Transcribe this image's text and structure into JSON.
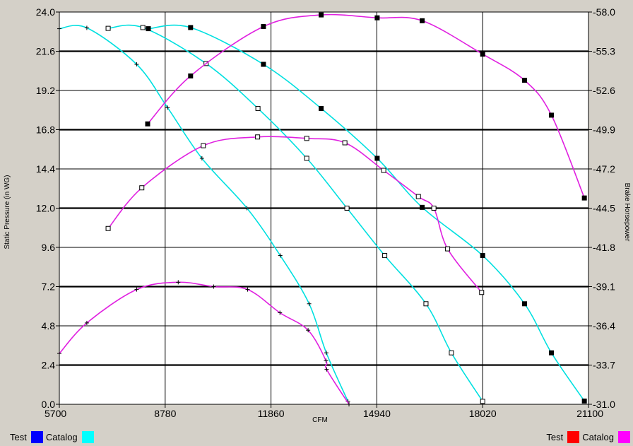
{
  "chart_data": {
    "type": "line",
    "xlabel": "CFM",
    "ylabel_left": "Static Pressure  (in WG)",
    "ylabel_right": "Brake Horsepower",
    "xlim": [
      5700,
      21100
    ],
    "ylim_left": [
      0,
      24
    ],
    "ylim_right": [
      -31.0,
      -58.0
    ],
    "x_ticks": [
      "5700",
      "8780",
      "11860",
      "14940",
      "18020",
      "21100"
    ],
    "y_left_ticks": [
      "0.0",
      "2.4",
      "4.8",
      "7.2",
      "9.6",
      "12.0",
      "14.4",
      "16.8",
      "19.2",
      "21.6",
      "24.0"
    ],
    "y_right_ticks": [
      "-31.0",
      "-33.7",
      "-36.4",
      "-39.1",
      "-41.8",
      "-44.5",
      "-47.2",
      "-49.9",
      "-52.6",
      "-55.3",
      "-58.0"
    ],
    "grid": true,
    "legend_left": [
      {
        "label": "Test",
        "color": "#0000ff"
      },
      {
        "label": "Catalog",
        "color": "#00ffff"
      }
    ],
    "legend_right": [
      {
        "label": "Test",
        "color": "#ff0000"
      },
      {
        "label": "Catalog",
        "color": "#ff00ff"
      }
    ],
    "series": [
      {
        "axis": "left",
        "color": "#00e0e0",
        "marker": "plus",
        "x": [
          5700,
          6500,
          7950,
          8850,
          9850,
          11160,
          12130,
          12970,
          13470,
          14100
        ],
        "y": [
          22.98,
          23.03,
          20.8,
          18.15,
          15.05,
          12.0,
          9.1,
          6.15,
          3.15,
          0.18
        ]
      },
      {
        "axis": "left",
        "color": "#00e0e0",
        "marker": "square",
        "x": [
          7120,
          8130,
          9970,
          11480,
          12900,
          14070,
          15170,
          16370,
          17110,
          18020
        ],
        "y": [
          23.0,
          23.05,
          20.85,
          18.1,
          15.05,
          12.0,
          9.1,
          6.15,
          3.15,
          0.18
        ]
      },
      {
        "axis": "left",
        "color": "#00e0e0",
        "marker": "filled",
        "x": [
          8290,
          9520,
          11640,
          13320,
          14950,
          16260,
          18020,
          19240,
          20020,
          20980
        ],
        "y": [
          22.98,
          23.05,
          20.8,
          18.1,
          15.05,
          12.05,
          9.1,
          6.15,
          3.15,
          0.2
        ]
      },
      {
        "axis": "right",
        "color": "#e020e0",
        "marker": "plus",
        "x": [
          5700,
          6500,
          7950,
          9160,
          10190,
          11180,
          12120,
          12940,
          13460,
          13480,
          14130
        ],
        "y": [
          -34.5,
          -36.6,
          -38.9,
          -39.4,
          -39.1,
          -38.9,
          -37.3,
          -36.1,
          -34.0,
          -33.4,
          -31.0
        ]
      },
      {
        "axis": "right",
        "color": "#e020e0",
        "marker": "square",
        "x": [
          7120,
          8100,
          9890,
          11470,
          12900,
          14010,
          15140,
          16150,
          16600,
          17000,
          17990
        ],
        "y": [
          -43.1,
          -45.9,
          -48.8,
          -49.4,
          -49.3,
          -49.0,
          -47.1,
          -45.3,
          -44.5,
          -41.7,
          -38.7
        ]
      },
      {
        "axis": "right",
        "color": "#e020e0",
        "marker": "filled",
        "x": [
          8270,
          9520,
          11640,
          13320,
          14950,
          16260,
          18020,
          19240,
          20020,
          20980
        ],
        "y": [
          -50.3,
          -53.6,
          -57.0,
          -57.8,
          -57.6,
          -57.4,
          -55.1,
          -53.3,
          -50.9,
          -45.2
        ]
      }
    ]
  }
}
